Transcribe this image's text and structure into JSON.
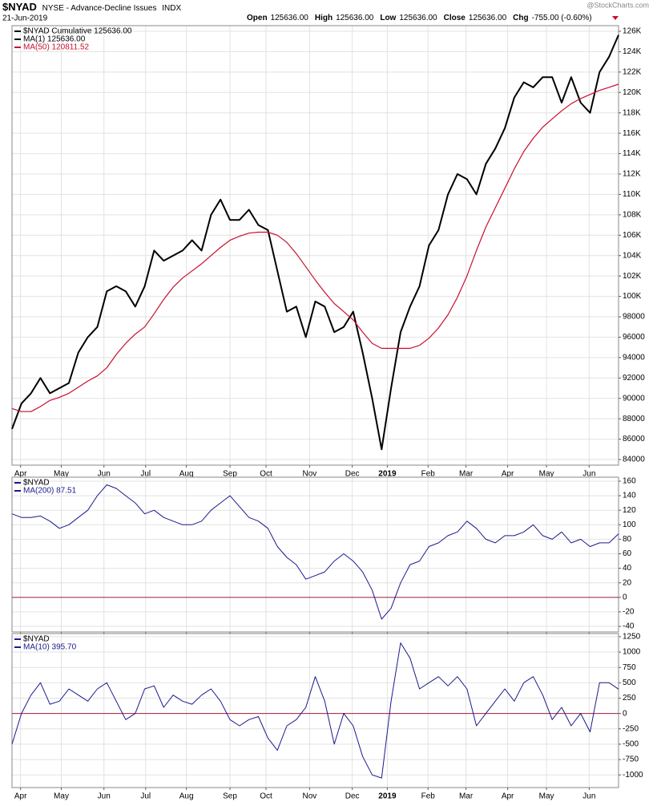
{
  "header": {
    "symbol": "$NYAD",
    "name": "NYSE - Advance-Decline Issues",
    "exchange": "INDX",
    "date": "21-Jun-2019",
    "watermark": "@StockCharts.com",
    "ohlc": [
      {
        "label": "Open",
        "value": "125636.00"
      },
      {
        "label": "High",
        "value": "125636.00"
      },
      {
        "label": "Low",
        "value": "125636.00"
      },
      {
        "label": "Close",
        "value": "125636.00"
      },
      {
        "label": "Chg",
        "value": "-755.00 (-0.60%)"
      }
    ]
  },
  "chart_data": [
    {
      "type": "line",
      "subtitle": "$NYAD Cumulative 125636.00",
      "xlim": [
        0,
        64
      ],
      "xticks": [
        {
          "value": 0.9,
          "label": "Apr"
        },
        {
          "value": 5.2,
          "label": "May"
        },
        {
          "value": 9.7,
          "label": "Jun"
        },
        {
          "value": 14.1,
          "label": "Jul"
        },
        {
          "value": 18.4,
          "label": "Aug"
        },
        {
          "value": 23,
          "label": "Sep"
        },
        {
          "value": 26.8,
          "label": "Oct"
        },
        {
          "value": 31.4,
          "label": "Nov"
        },
        {
          "value": 35.9,
          "label": "Dec"
        },
        {
          "value": 39.6,
          "label": "2019"
        },
        {
          "value": 43.9,
          "label": "Feb"
        },
        {
          "value": 47.9,
          "label": "Mar"
        },
        {
          "value": 52.3,
          "label": "Apr"
        },
        {
          "value": 56.4,
          "label": "May"
        },
        {
          "value": 60.9,
          "label": "Jun"
        }
      ],
      "ylim": [
        83450,
        126550
      ],
      "yticks": [
        {
          "value": 84000,
          "label": "84000"
        },
        {
          "value": 86000,
          "label": "86000"
        },
        {
          "value": 88000,
          "label": "88000"
        },
        {
          "value": 90000,
          "label": "90000"
        },
        {
          "value": 92000,
          "label": "92000"
        },
        {
          "value": 94000,
          "label": "94000"
        },
        {
          "value": 96000,
          "label": "96000"
        },
        {
          "value": 98000,
          "label": "98000"
        },
        {
          "value": 100000,
          "label": "100K"
        },
        {
          "value": 102000,
          "label": "102K"
        },
        {
          "value": 104000,
          "label": "104K"
        },
        {
          "value": 106000,
          "label": "106K"
        },
        {
          "value": 108000,
          "label": "108K"
        },
        {
          "value": 110000,
          "label": "110K"
        },
        {
          "value": 112000,
          "label": "112K"
        },
        {
          "value": 114000,
          "label": "114K"
        },
        {
          "value": 116000,
          "label": "116K"
        },
        {
          "value": 118000,
          "label": "118K"
        },
        {
          "value": 120000,
          "label": "120K"
        },
        {
          "value": 122000,
          "label": "122K"
        },
        {
          "value": 124000,
          "label": "124K"
        },
        {
          "value": 126000,
          "label": "126K"
        }
      ],
      "grid": true,
      "series": [
        {
          "name": "MA(1) 125636.00",
          "color": "#000000",
          "width": 2,
          "values": [
            87000,
            89500,
            90500,
            92000,
            90500,
            91000,
            91500,
            94500,
            96000,
            97000,
            100500,
            101000,
            100500,
            99000,
            101000,
            104500,
            103500,
            104000,
            104500,
            105500,
            104500,
            108000,
            109500,
            107500,
            107500,
            108500,
            107000,
            106500,
            102500,
            98500,
            99000,
            96000,
            99500,
            99000,
            96500,
            97000,
            98500,
            94500,
            90000,
            85000,
            91000,
            96500,
            99000,
            101000,
            105000,
            106500,
            110000,
            112000,
            111500,
            110000,
            113000,
            114500,
            116500,
            119500,
            121000,
            120500,
            121500,
            121500,
            119000,
            121500,
            119000,
            118000,
            122000,
            123500,
            125636
          ]
        },
        {
          "name": "MA(50) 120811.52",
          "color": "#c8102e",
          "width": 1.2,
          "values": [
            89000,
            88700,
            88700,
            89200,
            89800,
            90100,
            90500,
            91100,
            91700,
            92200,
            93000,
            94300,
            95400,
            96300,
            97000,
            98300,
            99700,
            100900,
            101800,
            102500,
            103200,
            104000,
            104800,
            105500,
            105900,
            106200,
            106300,
            106300,
            106000,
            105300,
            104200,
            102900,
            101600,
            100400,
            99300,
            98500,
            97700,
            96500,
            95400,
            94900,
            94900,
            94900,
            94900,
            95200,
            95900,
            96900,
            98200,
            99900,
            102000,
            104500,
            106800,
            108700,
            110600,
            112500,
            114200,
            115500,
            116600,
            117400,
            118200,
            118900,
            119400,
            119800,
            120200,
            120500,
            120811.52
          ]
        }
      ]
    },
    {
      "type": "line",
      "subtitle": "$NYAD",
      "xlim": [
        0,
        64
      ],
      "xticks": [
        0.9,
        5.2,
        9.7,
        14.1,
        18.4,
        23,
        26.8,
        31.4,
        35.9,
        39.6,
        43.9,
        47.9,
        52.3,
        56.4,
        60.9
      ],
      "ylim": [
        -47.7,
        165.5
      ],
      "yticks": [
        -40,
        -20,
        0,
        20,
        40,
        60,
        80,
        100,
        120,
        140,
        160
      ],
      "grid": true,
      "refline": 0,
      "refcolor": "#a0203c",
      "series": [
        {
          "name": "MA(200) 87.51",
          "color": "#1a1a8c",
          "width": 1,
          "values": [
            115,
            110,
            110,
            112,
            105,
            95,
            100,
            110,
            120,
            140,
            155,
            150,
            140,
            130,
            115,
            120,
            110,
            105,
            100,
            100,
            105,
            120,
            130,
            140,
            125,
            110,
            105,
            95,
            70,
            55,
            45,
            25,
            30,
            35,
            50,
            60,
            50,
            35,
            10,
            -30,
            -15,
            20,
            45,
            50,
            70,
            75,
            85,
            90,
            105,
            95,
            80,
            75,
            85,
            85,
            90,
            100,
            85,
            80,
            90,
            75,
            80,
            70,
            75,
            75,
            87.51
          ]
        }
      ]
    },
    {
      "type": "line",
      "subtitle": "$NYAD",
      "xlim": [
        0,
        64
      ],
      "xticks": [
        {
          "value": 0.9,
          "label": "Apr"
        },
        {
          "value": 5.2,
          "label": "May"
        },
        {
          "value": 9.7,
          "label": "Jun"
        },
        {
          "value": 14.1,
          "label": "Jul"
        },
        {
          "value": 18.4,
          "label": "Aug"
        },
        {
          "value": 23,
          "label": "Sep"
        },
        {
          "value": 26.8,
          "label": "Oct"
        },
        {
          "value": 31.4,
          "label": "Nov"
        },
        {
          "value": 35.9,
          "label": "Dec"
        },
        {
          "value": 39.6,
          "label": "2019"
        },
        {
          "value": 43.9,
          "label": "Feb"
        },
        {
          "value": 47.9,
          "label": "Mar"
        },
        {
          "value": 52.3,
          "label": "Apr"
        },
        {
          "value": 56.4,
          "label": "May"
        },
        {
          "value": 60.9,
          "label": "Jun"
        }
      ],
      "ylim": [
        -1206,
        1301
      ],
      "yticks": [
        -1000,
        -750,
        -500,
        -250,
        0,
        250,
        500,
        750,
        1000,
        1250
      ],
      "grid": true,
      "refline": 0,
      "refcolor": "#a0203c",
      "series": [
        {
          "name": "MA(10) 395.70",
          "color": "#1a1a8c",
          "width": 1,
          "values": [
            -500,
            0,
            300,
            500,
            150,
            200,
            400,
            300,
            200,
            400,
            500,
            200,
            -100,
            0,
            400,
            450,
            100,
            300,
            200,
            150,
            300,
            400,
            200,
            -100,
            -200,
            -100,
            -50,
            -400,
            -600,
            -200,
            -100,
            100,
            600,
            200,
            -500,
            0,
            -200,
            -700,
            -1000,
            -1050,
            200,
            1150,
            900,
            400,
            500,
            600,
            450,
            600,
            400,
            -200,
            0,
            200,
            400,
            200,
            500,
            600,
            300,
            -100,
            100,
            -200,
            0,
            -300,
            500,
            500,
            395.7
          ]
        }
      ]
    }
  ]
}
